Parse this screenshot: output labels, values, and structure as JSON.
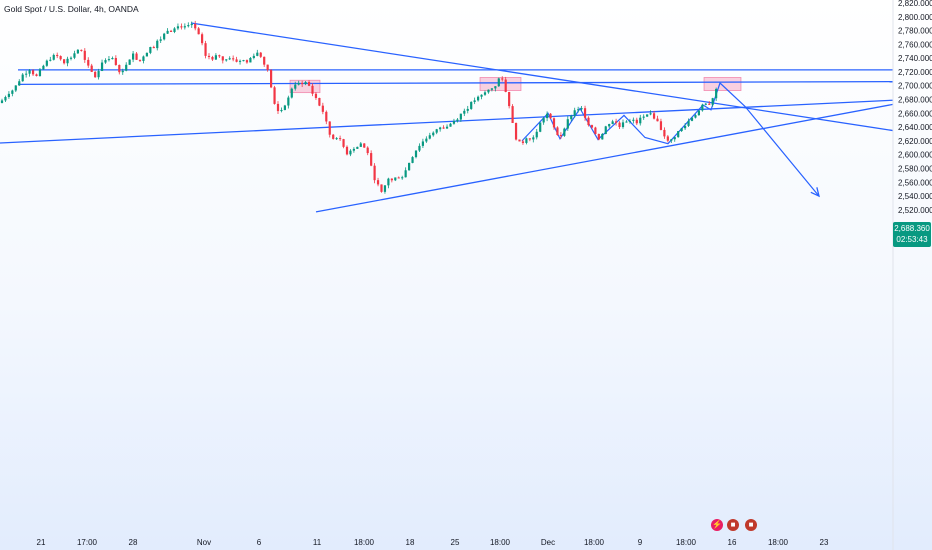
{
  "header": {
    "symbol_title": "Gold Spot / U.S. Dollar, 4h, OANDA"
  },
  "price_tag": {
    "price": "2,688.360",
    "countdown": "02:53:43",
    "color": "#089981"
  },
  "colors": {
    "up": "#089981",
    "down": "#f23645",
    "trendline": "#2962ff",
    "zone": "#e91e63"
  },
  "events": [
    {
      "icon": "lightning-icon",
      "color": "#e91e63"
    },
    {
      "icon": "us-flag-icon",
      "color": "#c0392b"
    },
    {
      "icon": "us-flag-icon",
      "color": "#c0392b"
    }
  ],
  "chart_data": {
    "type": "candlestick",
    "title": "Gold Spot / U.S. Dollar, 4h, OANDA",
    "ylim": [
      2515,
      2830
    ],
    "y_ticks": [
      "2,820.000",
      "2,800.000",
      "2,780.000",
      "2,760.000",
      "2,740.000",
      "2,720.000",
      "2,700.000",
      "2,680.000",
      "2,660.000",
      "2,640.000",
      "2,620.000",
      "2,600.000",
      "2,580.000",
      "2,560.000",
      "2,540.000",
      "2,520.000"
    ],
    "x_ticks": [
      "21",
      "17:00",
      "28",
      "Nov",
      "6",
      "11",
      "18:00",
      "18",
      "25",
      "18:00",
      "Dec",
      "18:00",
      "9",
      "18:00",
      "16",
      "18:00",
      "23"
    ],
    "price_path": [
      [
        0,
        2675
      ],
      [
        8,
        2690
      ],
      [
        14,
        2695
      ],
      [
        22,
        2715
      ],
      [
        30,
        2725
      ],
      [
        36,
        2712
      ],
      [
        44,
        2730
      ],
      [
        50,
        2740
      ],
      [
        58,
        2745
      ],
      [
        64,
        2735
      ],
      [
        70,
        2740
      ],
      [
        76,
        2750
      ],
      [
        80,
        2755
      ],
      [
        84,
        2738
      ],
      [
        90,
        2722
      ],
      [
        96,
        2712
      ],
      [
        102,
        2735
      ],
      [
        110,
        2742
      ],
      [
        116,
        2728
      ],
      [
        122,
        2718
      ],
      [
        128,
        2738
      ],
      [
        134,
        2748
      ],
      [
        138,
        2735
      ],
      [
        144,
        2745
      ],
      [
        150,
        2755
      ],
      [
        156,
        2762
      ],
      [
        162,
        2770
      ],
      [
        168,
        2783
      ],
      [
        174,
        2782
      ],
      [
        180,
        2788
      ],
      [
        186,
        2786
      ],
      [
        191,
        2788
      ],
      [
        196,
        2782
      ],
      [
        200,
        2768
      ],
      [
        206,
        2742
      ],
      [
        210,
        2745
      ],
      [
        214,
        2738
      ],
      [
        218,
        2745
      ],
      [
        224,
        2736
      ],
      [
        230,
        2742
      ],
      [
        236,
        2735
      ],
      [
        242,
        2738
      ],
      [
        248,
        2733
      ],
      [
        252,
        2745
      ],
      [
        258,
        2748
      ],
      [
        262,
        2740
      ],
      [
        266,
        2728
      ],
      [
        270,
        2710
      ],
      [
        273,
        2680
      ],
      [
        276,
        2665
      ],
      [
        280,
        2660
      ],
      [
        284,
        2672
      ],
      [
        288,
        2680
      ],
      [
        292,
        2698
      ],
      [
        296,
        2705
      ],
      [
        300,
        2701
      ],
      [
        304,
        2706
      ],
      [
        308,
        2703
      ],
      [
        312,
        2690
      ],
      [
        316,
        2682
      ],
      [
        320,
        2670
      ],
      [
        324,
        2660
      ],
      [
        328,
        2635
      ],
      [
        332,
        2622
      ],
      [
        336,
        2628
      ],
      [
        340,
        2620
      ],
      [
        344,
        2610
      ],
      [
        348,
        2600
      ],
      [
        352,
        2612
      ],
      [
        356,
        2608
      ],
      [
        360,
        2618
      ],
      [
        364,
        2610
      ],
      [
        368,
        2603
      ],
      [
        371,
        2582
      ],
      [
        374,
        2568
      ],
      [
        378,
        2555
      ],
      [
        381,
        2542
      ],
      [
        385,
        2555
      ],
      [
        389,
        2568
      ],
      [
        393,
        2560
      ],
      [
        397,
        2570
      ],
      [
        401,
        2566
      ],
      [
        405,
        2575
      ],
      [
        410,
        2592
      ],
      [
        415,
        2605
      ],
      [
        420,
        2615
      ],
      [
        425,
        2622
      ],
      [
        430,
        2630
      ],
      [
        435,
        2632
      ],
      [
        440,
        2640
      ],
      [
        445,
        2638
      ],
      [
        450,
        2645
      ],
      [
        455,
        2650
      ],
      [
        460,
        2658
      ],
      [
        465,
        2665
      ],
      [
        470,
        2672
      ],
      [
        475,
        2680
      ],
      [
        480,
        2683
      ],
      [
        485,
        2690
      ],
      [
        490,
        2695
      ],
      [
        495,
        2700
      ],
      [
        500,
        2713
      ],
      [
        503,
        2706
      ],
      [
        506,
        2690
      ],
      [
        510,
        2668
      ],
      [
        513,
        2640
      ],
      [
        516,
        2625
      ],
      [
        520,
        2615
      ],
      [
        524,
        2620
      ],
      [
        528,
        2630
      ],
      [
        532,
        2620
      ],
      [
        536,
        2632
      ],
      [
        540,
        2645
      ],
      [
        544,
        2655
      ],
      [
        548,
        2660
      ],
      [
        552,
        2645
      ],
      [
        556,
        2632
      ],
      [
        560,
        2625
      ],
      [
        564,
        2640
      ],
      [
        568,
        2650
      ],
      [
        572,
        2660
      ],
      [
        576,
        2666
      ],
      [
        580,
        2668
      ],
      [
        584,
        2660
      ],
      [
        588,
        2646
      ],
      [
        592,
        2640
      ],
      [
        596,
        2630
      ],
      [
        600,
        2622
      ],
      [
        604,
        2636
      ],
      [
        608,
        2645
      ],
      [
        612,
        2650
      ],
      [
        616,
        2646
      ],
      [
        620,
        2640
      ],
      [
        624,
        2652
      ],
      [
        628,
        2648
      ],
      [
        632,
        2655
      ],
      [
        636,
        2645
      ],
      [
        640,
        2652
      ],
      [
        644,
        2654
      ],
      [
        648,
        2656
      ],
      [
        652,
        2658
      ],
      [
        656,
        2652
      ],
      [
        660,
        2640
      ],
      [
        664,
        2630
      ],
      [
        668,
        2618
      ],
      [
        672,
        2622
      ],
      [
        676,
        2630
      ],
      [
        680,
        2636
      ],
      [
        684,
        2640
      ],
      [
        688,
        2648
      ],
      [
        692,
        2655
      ],
      [
        696,
        2660
      ],
      [
        700,
        2665
      ],
      [
        704,
        2673
      ],
      [
        708,
        2668
      ],
      [
        712,
        2680
      ],
      [
        716,
        2694
      ],
      [
        719,
        2704
      ]
    ],
    "zones": [
      {
        "x0": 290,
        "x1": 320,
        "p_top": 2708,
        "p_bot": 2690
      },
      {
        "x0": 480,
        "x1": 521,
        "p_top": 2712,
        "p_bot": 2693
      },
      {
        "x0": 704,
        "x1": 741,
        "p_top": 2712,
        "p_bot": 2693
      }
    ],
    "trendlines": [
      {
        "x0": 18,
        "p0": 2723,
        "x1": 893,
        "p1": 2723
      },
      {
        "x0": 18,
        "p0": 2702,
        "x1": 893,
        "p1": 2706
      },
      {
        "x0": 0,
        "p0": 2617,
        "x1": 893,
        "p1": 2679
      },
      {
        "x0": 191,
        "p0": 2791,
        "x1": 893,
        "p1": 2635
      },
      {
        "x0": 316,
        "p0": 2517,
        "x1": 893,
        "p1": 2673
      }
    ],
    "pattern_path": [
      [
        522,
        2620
      ],
      [
        548,
        2660
      ],
      [
        560,
        2623
      ],
      [
        580,
        2667
      ],
      [
        598,
        2622
      ],
      [
        624,
        2657
      ],
      [
        645,
        2625
      ],
      [
        668,
        2616
      ],
      [
        703,
        2672
      ],
      [
        711,
        2665
      ],
      [
        720,
        2704
      ],
      [
        745,
        2670
      ],
      [
        819,
        2540
      ]
    ]
  }
}
